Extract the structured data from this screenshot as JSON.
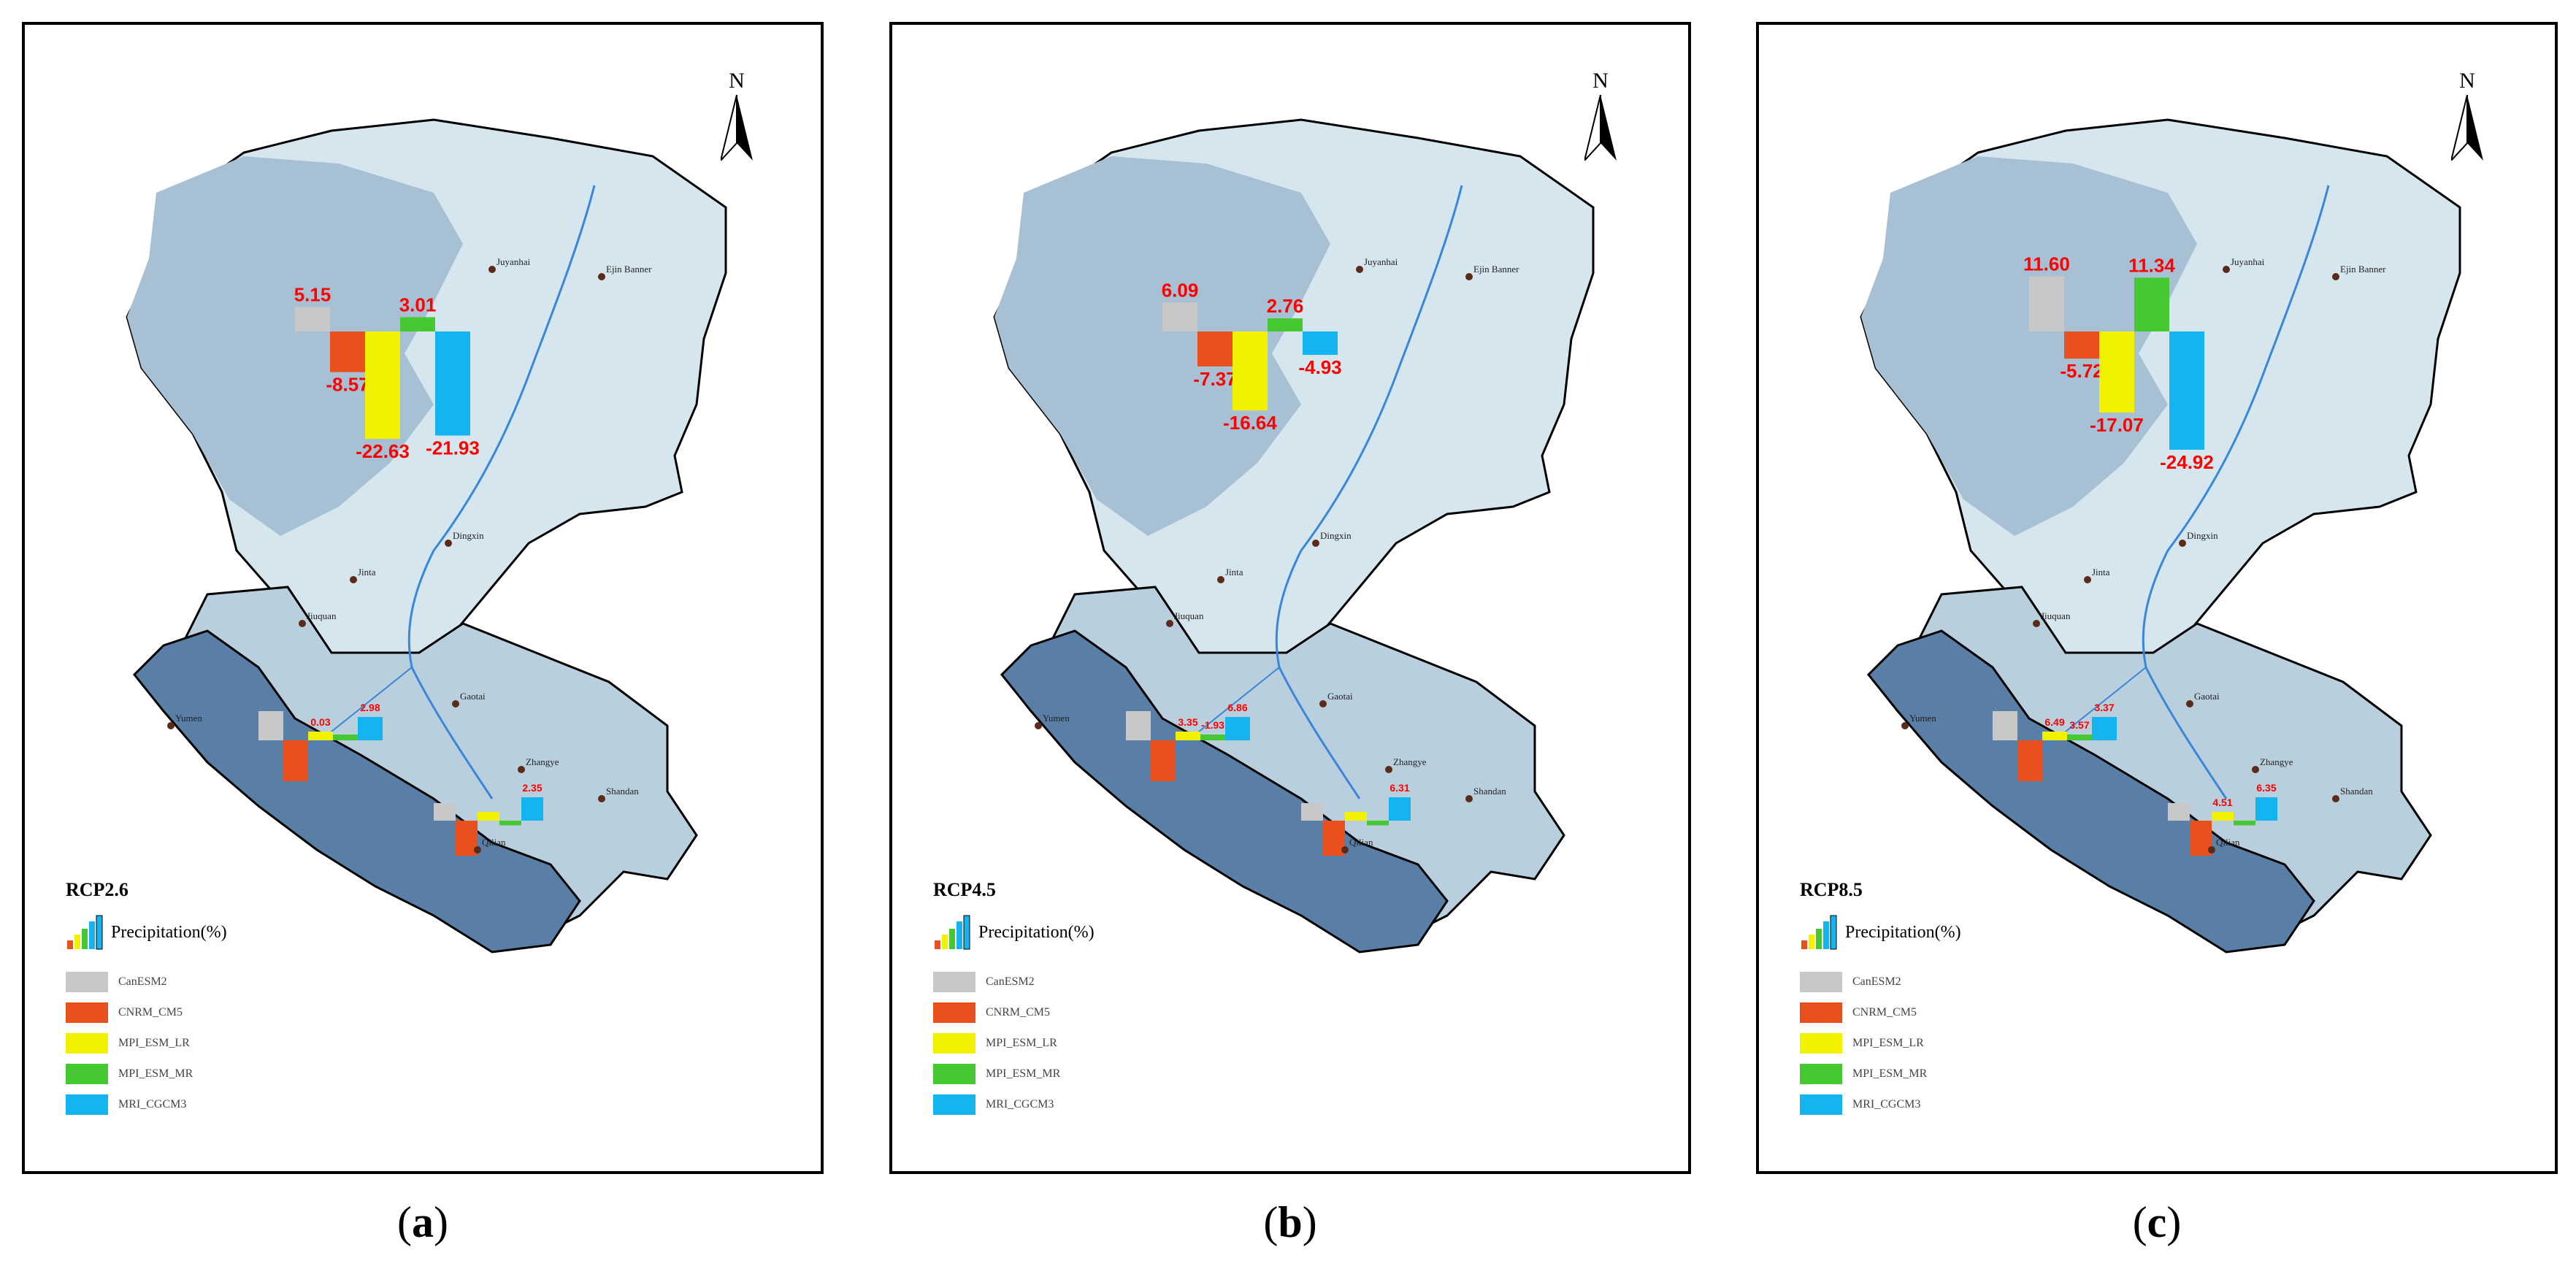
{
  "panels": [
    {
      "caption_letter": "a",
      "scenario": "RCP2.6",
      "top_labels": [
        "5.15",
        "-8.57",
        "-22.63",
        "3.01",
        "-21.93"
      ],
      "top_values": [
        5.15,
        -8.57,
        -22.63,
        3.01,
        -21.93
      ],
      "mid_labels": [
        "",
        "",
        "0.03",
        "",
        "2.98"
      ],
      "low_labels": [
        "",
        "",
        "",
        "",
        "2.35"
      ]
    },
    {
      "caption_letter": "b",
      "scenario": "RCP4.5",
      "top_labels": [
        "6.09",
        "-7.37",
        "-16.64",
        "2.76",
        "-4.93"
      ],
      "top_values": [
        6.09,
        -7.37,
        -16.64,
        2.76,
        -4.93
      ],
      "mid_labels": [
        "",
        "",
        "3.35",
        "-1.93",
        "6.86"
      ],
      "low_labels": [
        "",
        "",
        "",
        "",
        "6.31"
      ]
    },
    {
      "caption_letter": "c",
      "scenario": "RCP8.5",
      "top_labels": [
        "11.60",
        "-5.72",
        "-17.07",
        "11.34",
        "-24.92"
      ],
      "top_values": [
        11.6,
        -5.72,
        -17.07,
        11.34,
        -24.92
      ],
      "mid_labels": [
        "",
        "",
        "6.49",
        "3.57",
        "3.37"
      ],
      "low_labels": [
        "",
        "",
        "4.51",
        "",
        "6.35"
      ]
    }
  ],
  "north_label": "N",
  "legend": {
    "title": "Precipitation(%)",
    "models": [
      {
        "name": "CanESM2",
        "color": "#c8c8c8"
      },
      {
        "name": "CNRM_CM5",
        "color": "#e8501e"
      },
      {
        "name": "MPI_ESM_LR",
        "color": "#f2f200"
      },
      {
        "name": "MPI_ESM_MR",
        "color": "#46c832"
      },
      {
        "name": "MRI_CGCM3",
        "color": "#14b4f0"
      }
    ]
  },
  "places": [
    "Ejin Banner",
    "Juyanhai",
    "Dingxin",
    "Jinta",
    "Jiuquan",
    "Gaotai",
    "Zhangye",
    "Shandan",
    "Yumen",
    "Qilian"
  ],
  "colors": {
    "north_basin": "#d6e6ee",
    "north_lake_region": "#a8c0d4",
    "mid_basin": "#b9cfdd",
    "mountain": "#5a7fa6",
    "river": "#3a86d8",
    "label_red": "#ff0000"
  }
}
